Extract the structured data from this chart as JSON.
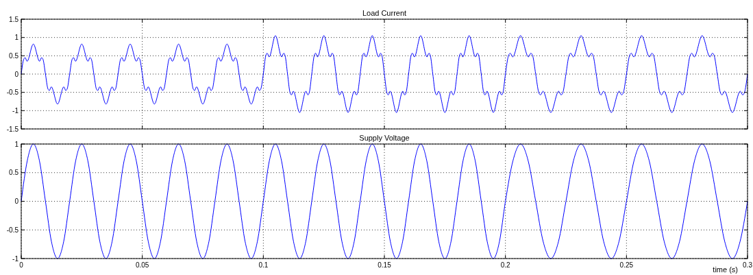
{
  "chart_data": [
    {
      "type": "line",
      "title": "Load Current",
      "xlim": [
        0,
        0.3
      ],
      "xticks": [
        0,
        0.05,
        0.1,
        0.15,
        0.2,
        0.25,
        0.3
      ],
      "ylim": [
        -1.5,
        1.5
      ],
      "yticks": [
        -1.5,
        -1,
        -0.5,
        0,
        0.5,
        1,
        1.5
      ],
      "grid": true,
      "tick_labels": "y",
      "series": [
        {
          "color": "#0000ff",
          "x": [
            0,
            0.001,
            0.0016,
            0.0024,
            0.005,
            0.0076,
            0.0084,
            0.009,
            0.01,
            0.011,
            0.0116,
            0.0124,
            0.015,
            0.0176,
            0.0184,
            0.019,
            0.02,
            0.021,
            0.0216,
            0.0224,
            0.025,
            0.0276,
            0.0284,
            0.029,
            0.03,
            0.031,
            0.0316,
            0.0324,
            0.035,
            0.0376,
            0.0384,
            0.039,
            0.04,
            0.041,
            0.0416,
            0.0424,
            0.045,
            0.0476,
            0.0484,
            0.049,
            0.05,
            0.051,
            0.0516,
            0.0524,
            0.055,
            0.0576,
            0.0584,
            0.059,
            0.06,
            0.061,
            0.0616,
            0.0624,
            0.065,
            0.0676,
            0.0684,
            0.069,
            0.07,
            0.071,
            0.0716,
            0.0724,
            0.075,
            0.0776,
            0.0784,
            0.079,
            0.08,
            0.081,
            0.0816,
            0.0824,
            0.085,
            0.0876,
            0.0884,
            0.089,
            0.09,
            0.091,
            0.0916,
            0.0924,
            0.095,
            0.0976,
            0.0984,
            0.099,
            0.1,
            0.101,
            0.1016,
            0.1024,
            0.105,
            0.1076,
            0.1084,
            0.109,
            0.11,
            0.111,
            0.1116,
            0.1124,
            0.115,
            0.1176,
            0.1184,
            0.119,
            0.12,
            0.121,
            0.1216,
            0.1224,
            0.125,
            0.1276,
            0.1284,
            0.129,
            0.13,
            0.131,
            0.1316,
            0.1324,
            0.135,
            0.1376,
            0.1384,
            0.139,
            0.14,
            0.141,
            0.1416,
            0.1424,
            0.145,
            0.1476,
            0.1484,
            0.149,
            0.15,
            0.151,
            0.1516,
            0.1524,
            0.155,
            0.1576,
            0.1584,
            0.159,
            0.16,
            0.161,
            0.1616,
            0.1624,
            0.165,
            0.1676,
            0.1684,
            0.169,
            0.17,
            0.171,
            0.1716,
            0.1724,
            0.175,
            0.1776,
            0.1784,
            0.179,
            0.18,
            0.181,
            0.1816,
            0.1824,
            0.185,
            0.1876,
            0.1884,
            0.189,
            0.19,
            0.191,
            0.1916,
            0.1924,
            0.195,
            0.1976,
            0.1984,
            0.199,
            0.2,
            0.20125,
            0.202,
            0.203,
            0.20625,
            0.2095,
            0.2105,
            0.21125,
            0.2125,
            0.21375,
            0.2145,
            0.2155,
            0.21875,
            0.222,
            0.223,
            0.22375,
            0.225,
            0.22625,
            0.227,
            0.228,
            0.23125,
            0.2345,
            0.2355,
            0.23625,
            0.2375,
            0.23875,
            0.2395,
            0.2405,
            0.24375,
            0.247,
            0.248,
            0.24875,
            0.25,
            0.25125,
            0.252,
            0.253,
            0.25625,
            0.2595,
            0.2605,
            0.26125,
            0.2625,
            0.26375,
            0.2645,
            0.2655,
            0.26875,
            0.272,
            0.273,
            0.27375,
            0.275,
            0.27625,
            0.277,
            0.278,
            0.28125,
            0.2845,
            0.2855,
            0.28625,
            0.2875,
            0.28875,
            0.2895,
            0.2905,
            0.29375,
            0.297,
            0.298,
            0.29875,
            0.3
          ],
          "values": [
            0,
            0.4,
            0.45,
            0.35,
            0.82,
            0.35,
            0.45,
            0.4,
            0,
            -0.4,
            -0.45,
            -0.35,
            -0.82,
            -0.35,
            -0.45,
            -0.4,
            0,
            0.4,
            0.45,
            0.35,
            0.82,
            0.35,
            0.45,
            0.4,
            0,
            -0.4,
            -0.45,
            -0.35,
            -0.82,
            -0.35,
            -0.45,
            -0.4,
            0,
            0.4,
            0.45,
            0.35,
            0.82,
            0.35,
            0.45,
            0.4,
            0,
            -0.4,
            -0.45,
            -0.35,
            -0.82,
            -0.35,
            -0.45,
            -0.4,
            0,
            0.4,
            0.45,
            0.35,
            0.82,
            0.35,
            0.45,
            0.4,
            0,
            -0.4,
            -0.45,
            -0.35,
            -0.82,
            -0.35,
            -0.45,
            -0.4,
            0,
            0.4,
            0.45,
            0.35,
            0.82,
            0.35,
            0.45,
            0.4,
            0,
            -0.4,
            -0.45,
            -0.35,
            -0.82,
            -0.35,
            -0.45,
            -0.4,
            0,
            0.5,
            0.57,
            0.47,
            1.05,
            0.47,
            0.57,
            0.5,
            0,
            -0.5,
            -0.57,
            -0.47,
            -1.05,
            -0.47,
            -0.57,
            -0.5,
            0,
            0.5,
            0.57,
            0.47,
            1.05,
            0.47,
            0.57,
            0.5,
            0,
            -0.5,
            -0.57,
            -0.47,
            -1.05,
            -0.47,
            -0.57,
            -0.5,
            0,
            0.5,
            0.57,
            0.47,
            1.05,
            0.47,
            0.57,
            0.5,
            0,
            -0.5,
            -0.57,
            -0.47,
            -1.05,
            -0.47,
            -0.57,
            -0.5,
            0,
            0.5,
            0.57,
            0.47,
            1.05,
            0.47,
            0.57,
            0.5,
            0,
            -0.5,
            -0.57,
            -0.47,
            -1.05,
            -0.47,
            -0.57,
            -0.5,
            0,
            0.5,
            0.57,
            0.47,
            1.05,
            0.47,
            0.57,
            0.5,
            0,
            -0.5,
            -0.57,
            -0.47,
            -1.05,
            -0.47,
            -0.57,
            -0.5,
            0,
            0.5,
            0.57,
            0.47,
            1.05,
            0.47,
            0.57,
            0.5,
            0,
            -0.5,
            -0.57,
            -0.47,
            -1.05,
            -0.47,
            -0.57,
            -0.5,
            0,
            0.5,
            0.57,
            0.47,
            1.05,
            0.47,
            0.57,
            0.5,
            0,
            -0.5,
            -0.57,
            -0.47,
            -1.05,
            -0.47,
            -0.57,
            -0.5,
            0,
            0.5,
            0.57,
            0.47,
            1.05,
            0.47,
            0.57,
            0.5,
            0,
            -0.5,
            -0.57,
            -0.47,
            -1.05,
            -0.47,
            -0.57,
            -0.5,
            0,
            0.5,
            0.57,
            0.47,
            1.05,
            0.47,
            0.57,
            0.5,
            0,
            -0.5,
            -0.57,
            -0.47,
            -1.05,
            -0.47,
            -0.57,
            -0.5,
            0
          ]
        }
      ]
    },
    {
      "type": "line",
      "title": "Supply Voltage",
      "xlabel": "time (s)",
      "xlim": [
        0,
        0.3
      ],
      "xticks": [
        0,
        0.05,
        0.1,
        0.15,
        0.2,
        0.25,
        0.3
      ],
      "ylim": [
        -1,
        1
      ],
      "yticks": [
        -1,
        -0.5,
        0,
        0.5,
        1
      ],
      "grid": true,
      "series": [
        {
          "color": "#0000ff",
          "x": [
            0,
            0.0025,
            0.005,
            0.0075,
            0.01,
            0.0125,
            0.015,
            0.0175,
            0.02,
            0.0225,
            0.025,
            0.0275,
            0.03,
            0.0325,
            0.035,
            0.0375,
            0.04,
            0.0425,
            0.045,
            0.0475,
            0.05,
            0.0525,
            0.055,
            0.0575,
            0.06,
            0.0625,
            0.065,
            0.0675,
            0.07,
            0.0725,
            0.075,
            0.0775,
            0.08,
            0.0825,
            0.085,
            0.0875,
            0.09,
            0.0925,
            0.095,
            0.0975,
            0.1,
            0.1025,
            0.105,
            0.1075,
            0.11,
            0.1125,
            0.115,
            0.1175,
            0.12,
            0.1225,
            0.125,
            0.1275,
            0.13,
            0.1325,
            0.135,
            0.1375,
            0.14,
            0.1425,
            0.145,
            0.1475,
            0.15,
            0.1525,
            0.155,
            0.1575,
            0.16,
            0.1625,
            0.165,
            0.1675,
            0.17,
            0.1725,
            0.175,
            0.1775,
            0.18,
            0.1825,
            0.185,
            0.1875,
            0.19,
            0.1925,
            0.195,
            0.1975,
            0.2,
            0.203125,
            0.20625,
            0.209375,
            0.2125,
            0.215625,
            0.21875,
            0.221875,
            0.225,
            0.228125,
            0.23125,
            0.234375,
            0.2375,
            0.240625,
            0.24375,
            0.246875,
            0.25,
            0.253125,
            0.25625,
            0.259375,
            0.2625,
            0.265625,
            0.26875,
            0.271875,
            0.275,
            0.278125,
            0.28125,
            0.284375,
            0.2875,
            0.290625,
            0.29375,
            0.296875,
            0.3
          ],
          "values": [
            0,
            0.71,
            1,
            0.71,
            0,
            -0.71,
            -1,
            -0.71,
            0,
            0.71,
            1,
            0.71,
            0,
            -0.71,
            -1,
            -0.71,
            0,
            0.71,
            1,
            0.71,
            0,
            -0.71,
            -1,
            -0.71,
            0,
            0.71,
            1,
            0.71,
            0,
            -0.71,
            -1,
            -0.71,
            0,
            0.71,
            1,
            0.71,
            0,
            -0.71,
            -1,
            -0.71,
            0,
            0.71,
            1,
            0.71,
            0,
            -0.71,
            -1,
            -0.71,
            0,
            0.71,
            1,
            0.71,
            0,
            -0.71,
            -1,
            -0.71,
            0,
            0.71,
            1,
            0.71,
            0,
            -0.71,
            -1,
            -0.71,
            0,
            0.71,
            1,
            0.71,
            0,
            -0.71,
            -1,
            -0.71,
            0,
            0.71,
            1,
            0.71,
            0,
            -0.71,
            -1,
            -0.71,
            0,
            0.71,
            1,
            0.71,
            0,
            -0.71,
            -1,
            -0.71,
            0,
            0.71,
            1,
            0.71,
            0,
            -0.71,
            -1,
            -0.71,
            0,
            0.71,
            1,
            0.71,
            0,
            -0.71,
            -1,
            -0.71,
            0,
            0.71,
            1,
            0.71,
            0,
            -0.71,
            -1,
            -0.71,
            0
          ]
        }
      ]
    }
  ]
}
